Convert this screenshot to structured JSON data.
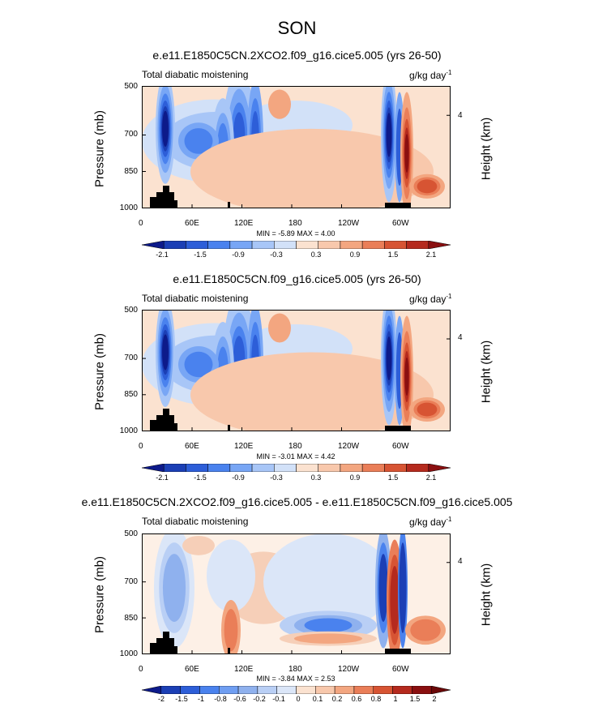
{
  "title": "SON",
  "colors": {
    "neg": [
      "#0d1a8a",
      "#1b3fb5",
      "#2d5ed8",
      "#4a82ee",
      "#78a6f5",
      "#a8c6f7",
      "#d2e1f8"
    ],
    "pos": [
      "#fbe2d0",
      "#f8c8ac",
      "#f3a680",
      "#ea7e58",
      "#d75433",
      "#b52a1e",
      "#8a0f10"
    ]
  },
  "chart_data": [
    {
      "type": "heatmap",
      "title": "e.e11.E1850C5CN.2XCO2.f09_g16.cice5.005 (yrs 26-50)",
      "left_label": "Total diabatic moistening",
      "right_label": "g/kg day",
      "right_label_sup": "-1",
      "ylabel": "Pressure (mb)",
      "ylabel_right": "Height (km)",
      "yticks": [
        "500",
        "700",
        "850",
        "1000"
      ],
      "ytick_right": "4",
      "xticks": [
        "0",
        "60E",
        "120E",
        "180",
        "120W",
        "60W"
      ],
      "minmax": "MIN = -5.89  MAX =  4.00",
      "colorbar_labels": [
        "-2.1",
        "-1.5",
        "-0.9",
        "-0.3",
        "0.3",
        "0.9",
        "1.5",
        "2.1"
      ]
    },
    {
      "type": "heatmap",
      "title": "e.e11.E1850C5CN.f09_g16.cice5.005 (yrs 26-50)",
      "left_label": "Total diabatic moistening",
      "right_label": "g/kg day",
      "right_label_sup": "-1",
      "ylabel": "Pressure (mb)",
      "ylabel_right": "Height (km)",
      "yticks": [
        "500",
        "700",
        "850",
        "1000"
      ],
      "ytick_right": "4",
      "xticks": [
        "0",
        "60E",
        "120E",
        "180",
        "120W",
        "60W"
      ],
      "minmax": "MIN = -3.01  MAX =  4.42",
      "colorbar_labels": [
        "-2.1",
        "-1.5",
        "-0.9",
        "-0.3",
        "0.3",
        "0.9",
        "1.5",
        "2.1"
      ]
    },
    {
      "type": "heatmap",
      "title": "e.e11.E1850C5CN.2XCO2.f09_g16.cice5.005 - e.e11.E1850C5CN.f09_g16.cice5.005",
      "left_label": "Total diabatic moistening",
      "right_label": "g/kg day",
      "right_label_sup": "-1",
      "ylabel": "Pressure (mb)",
      "ylabel_right": "Height (km)",
      "yticks": [
        "500",
        "700",
        "850",
        "1000"
      ],
      "ytick_right": "4",
      "xticks": [
        "0",
        "60E",
        "120E",
        "180",
        "120W",
        "60W"
      ],
      "minmax": "MIN = -3.84  MAX =  2.53",
      "colorbar_labels": [
        "-2",
        "-1.5",
        "-1",
        "-0.8",
        "-0.6",
        "-0.2",
        "-0.1",
        "0",
        "0.1",
        "0.2",
        "0.6",
        "0.8",
        "1",
        "1.5",
        "2"
      ]
    }
  ]
}
